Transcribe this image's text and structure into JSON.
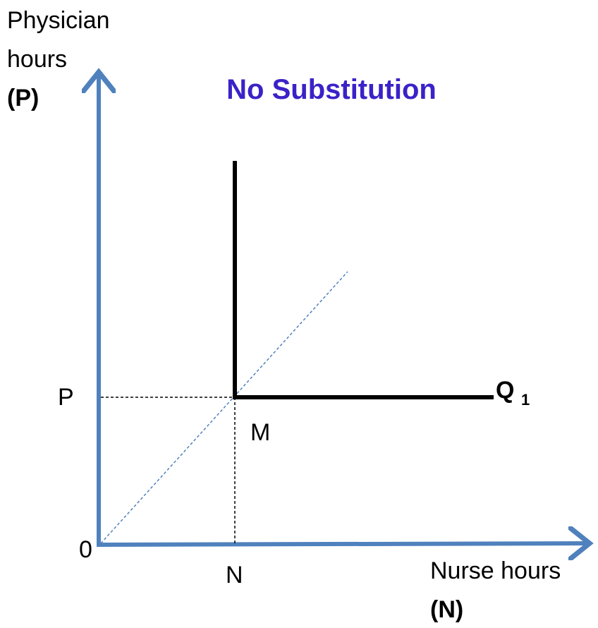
{
  "title": "No Substitution",
  "y_axis": {
    "label_lines": [
      "Physician",
      "hours"
    ],
    "symbol": "(P)"
  },
  "x_axis": {
    "label": "Nurse hours",
    "symbol": "(N)"
  },
  "origin": "0",
  "points": {
    "p_level": "P",
    "n_level": "N",
    "corner": "M"
  },
  "isoquant": {
    "label": "Q",
    "subscript": "1"
  }
}
